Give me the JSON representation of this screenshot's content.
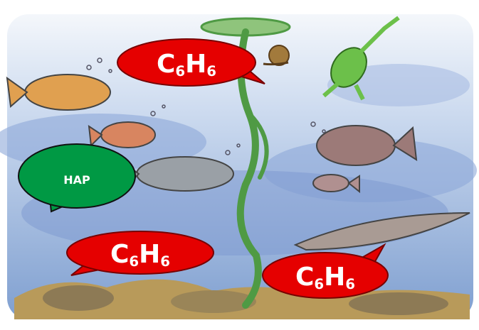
{
  "bubbles": [
    {
      "label": [
        "C",
        "6",
        "H",
        "6"
      ]
    },
    {
      "label": [
        "HAP"
      ]
    },
    {
      "label": [
        "C",
        "6",
        "H",
        "6"
      ]
    },
    {
      "label": [
        "C",
        "6",
        "H",
        "6"
      ]
    }
  ]
}
